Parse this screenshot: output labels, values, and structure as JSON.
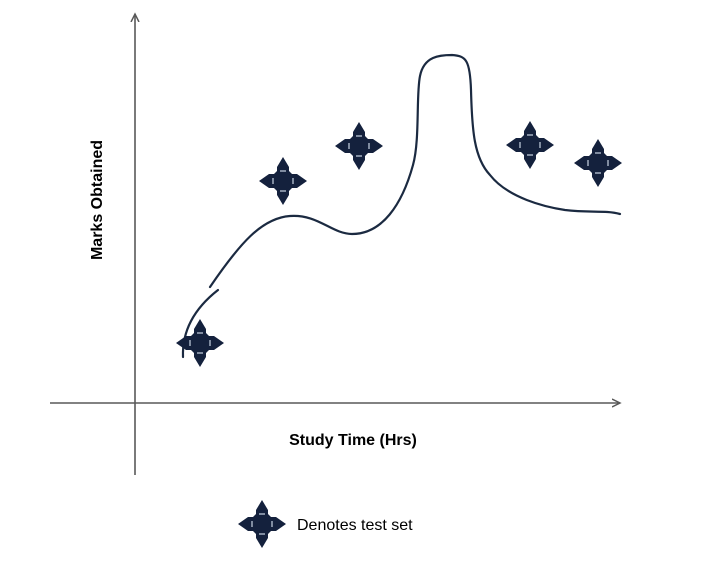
{
  "diagram": {
    "x_axis_label": "Study Time (Hrs)",
    "y_axis_label": "Marks Obtained",
    "legend_text": "Denotes test set",
    "marker_shape": "four-point-star-diamond",
    "colors": {
      "marker": "#14213d",
      "curve": "#1b2a41",
      "axis": "#595959"
    },
    "test_points_count": 5
  }
}
